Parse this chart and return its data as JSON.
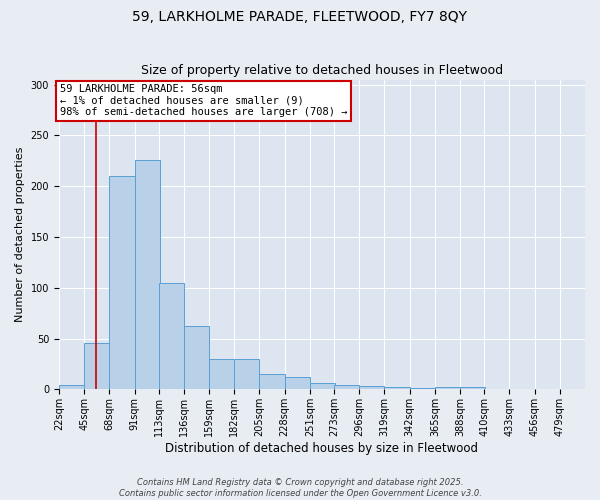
{
  "title": "59, LARKHOLME PARADE, FLEETWOOD, FY7 8QY",
  "subtitle": "Size of property relative to detached houses in Fleetwood",
  "xlabel": "Distribution of detached houses by size in Fleetwood",
  "ylabel": "Number of detached properties",
  "bin_edges": [
    22,
    45,
    68,
    91,
    113,
    136,
    159,
    182,
    205,
    228,
    251,
    273,
    296,
    319,
    342,
    365,
    388,
    410,
    433,
    456,
    479
  ],
  "bar_heights": [
    4,
    46,
    210,
    226,
    105,
    62,
    30,
    30,
    15,
    12,
    6,
    4,
    3,
    2,
    1,
    2,
    2,
    0,
    0,
    0
  ],
  "bar_color": "#b8d0e8",
  "bar_edge_color": "#5a9fd4",
  "property_size": 56,
  "vline_color": "#cc0000",
  "annotation_line1": "59 LARKHOLME PARADE: 56sqm",
  "annotation_line2": "← 1% of detached houses are smaller (9)",
  "annotation_line3": "98% of semi-detached houses are larger (708) →",
  "annotation_box_color": "#ffffff",
  "annotation_box_edge_color": "#cc0000",
  "ylim": [
    0,
    305
  ],
  "yticks": [
    0,
    50,
    100,
    150,
    200,
    250,
    300
  ],
  "footer_line1": "Contains HM Land Registry data © Crown copyright and database right 2025.",
  "footer_line2": "Contains public sector information licensed under the Open Government Licence v3.0.",
  "bg_color": "#e8edf4",
  "plot_bg_color": "#dce5f0",
  "grid_color": "#ffffff",
  "title_fontsize": 10,
  "subtitle_fontsize": 9,
  "ylabel_fontsize": 8,
  "xlabel_fontsize": 8.5,
  "tick_fontsize": 7,
  "annotation_fontsize": 7.5,
  "footer_fontsize": 6
}
